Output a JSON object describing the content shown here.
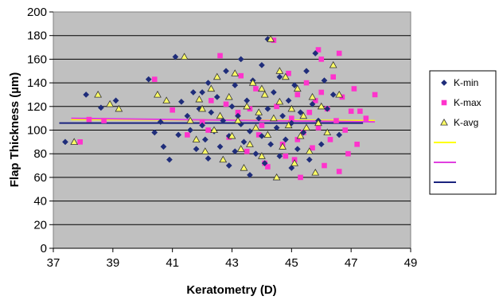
{
  "chart_data": {
    "type": "scatter",
    "title": "",
    "xlabel": "Keratometry (D)",
    "ylabel": "Flap Thickness (µm)",
    "xlim": [
      37,
      49
    ],
    "ylim": [
      0,
      200
    ],
    "x_ticks": [
      "37",
      "39",
      "41",
      "43",
      "45",
      "47",
      "49"
    ],
    "y_ticks": [
      "0",
      "20",
      "40",
      "60",
      "80",
      "100",
      "120",
      "140",
      "160",
      "180",
      "200"
    ],
    "grid": "horizontal",
    "legend_position": "right",
    "colors": {
      "plot_background": "#c0c0c0",
      "gridline": "#000000",
      "k_min": "#1f2d7a",
      "k_max": "#ff33cc",
      "k_avg_fill": "#ffff66",
      "k_avg_edge": "#333333",
      "trend_yellow": "#ffff00",
      "trend_magenta": "#e040e0",
      "trend_navy": "#1a237e"
    },
    "series": [
      {
        "name": "K-min",
        "marker": "diamond",
        "values": [
          [
            37.4,
            90
          ],
          [
            38.1,
            130
          ],
          [
            38.6,
            119
          ],
          [
            39.1,
            125
          ],
          [
            40.2,
            143
          ],
          [
            40.4,
            98
          ],
          [
            40.6,
            107
          ],
          [
            40.7,
            86
          ],
          [
            40.9,
            75
          ],
          [
            41.1,
            162
          ],
          [
            41.3,
            124
          ],
          [
            41.5,
            112
          ],
          [
            41.6,
            100
          ],
          [
            41.7,
            132
          ],
          [
            41.8,
            84
          ],
          [
            41.9,
            118
          ],
          [
            42.0,
            104
          ],
          [
            42.1,
            92
          ],
          [
            42.2,
            140
          ],
          [
            42.2,
            76
          ],
          [
            42.3,
            115
          ],
          [
            42.4,
            99
          ],
          [
            42.5,
            128
          ],
          [
            42.6,
            86
          ],
          [
            42.7,
            108
          ],
          [
            42.8,
            150
          ],
          [
            42.9,
            95
          ],
          [
            42.9,
            70
          ],
          [
            43.0,
            120
          ],
          [
            43.1,
            82
          ],
          [
            43.2,
            112
          ],
          [
            43.3,
            105
          ],
          [
            43.3,
            160
          ],
          [
            43.4,
            90
          ],
          [
            43.5,
            125
          ],
          [
            43.6,
            62
          ],
          [
            43.6,
            99
          ],
          [
            43.7,
            142
          ],
          [
            43.8,
            80
          ],
          [
            43.9,
            110
          ],
          [
            44.0,
            155
          ],
          [
            44.0,
            95
          ],
          [
            44.1,
            72
          ],
          [
            44.2,
            177
          ],
          [
            44.2,
            118
          ],
          [
            44.3,
            88
          ],
          [
            44.4,
            132
          ],
          [
            44.5,
            102
          ],
          [
            44.6,
            78
          ],
          [
            44.6,
            145
          ],
          [
            44.7,
            112
          ],
          [
            44.8,
            92
          ],
          [
            44.9,
            125
          ],
          [
            45.0,
            68
          ],
          [
            45.0,
            106
          ],
          [
            45.1,
            138
          ],
          [
            45.2,
            84
          ],
          [
            45.3,
            115
          ],
          [
            45.4,
            98
          ],
          [
            45.5,
            150
          ],
          [
            45.6,
            75
          ],
          [
            45.7,
            122
          ],
          [
            45.8,
            165
          ],
          [
            45.9,
            108
          ],
          [
            46.0,
            88
          ],
          [
            46.1,
            142
          ],
          [
            46.2,
            118
          ],
          [
            46.4,
            130
          ],
          [
            46.6,
            96
          ],
          [
            41.2,
            96
          ],
          [
            42.0,
            132
          ],
          [
            43.1,
            138
          ]
        ]
      },
      {
        "name": "K-max",
        "marker": "square",
        "values": [
          [
            37.9,
            90
          ],
          [
            38.2,
            109
          ],
          [
            38.7,
            108
          ],
          [
            40.4,
            143
          ],
          [
            41.0,
            117
          ],
          [
            41.5,
            96
          ],
          [
            42.0,
            107
          ],
          [
            42.3,
            125
          ],
          [
            42.6,
            163
          ],
          [
            42.9,
            94
          ],
          [
            43.2,
            115
          ],
          [
            43.5,
            82
          ],
          [
            43.8,
            135
          ],
          [
            44.0,
            104
          ],
          [
            44.2,
            69
          ],
          [
            44.4,
            176
          ],
          [
            44.5,
            120
          ],
          [
            44.7,
            88
          ],
          [
            44.9,
            148
          ],
          [
            45.0,
            110
          ],
          [
            45.1,
            75
          ],
          [
            45.2,
            130
          ],
          [
            45.3,
            60
          ],
          [
            45.4,
            98
          ],
          [
            45.5,
            140
          ],
          [
            45.6,
            115
          ],
          [
            45.7,
            85
          ],
          [
            45.8,
            125
          ],
          [
            45.9,
            102
          ],
          [
            46.0,
            160
          ],
          [
            46.1,
            70
          ],
          [
            46.2,
            118
          ],
          [
            46.3,
            92
          ],
          [
            46.4,
            145
          ],
          [
            46.5,
            108
          ],
          [
            46.6,
            65
          ],
          [
            46.7,
            128
          ],
          [
            46.8,
            100
          ],
          [
            46.9,
            80
          ],
          [
            47.0,
            116
          ],
          [
            47.1,
            135
          ],
          [
            47.2,
            88
          ],
          [
            47.3,
            116
          ],
          [
            47.5,
            110
          ],
          [
            47.8,
            130
          ],
          [
            46.6,
            165
          ],
          [
            45.9,
            168
          ],
          [
            44.8,
            78
          ],
          [
            43.9,
            96
          ],
          [
            43.3,
            146
          ],
          [
            42.8,
            122
          ],
          [
            44.1,
            72
          ],
          [
            45.2,
            92
          ],
          [
            46.0,
            132
          ],
          [
            42.2,
            100
          ],
          [
            43.6,
            118
          ]
        ]
      },
      {
        "name": "K-avg",
        "marker": "triangle",
        "values": [
          [
            37.7,
            90
          ],
          [
            38.5,
            130
          ],
          [
            38.9,
            122
          ],
          [
            39.2,
            118
          ],
          [
            40.5,
            130
          ],
          [
            40.8,
            125
          ],
          [
            41.4,
            162
          ],
          [
            41.6,
            108
          ],
          [
            41.8,
            92
          ],
          [
            42.0,
            118
          ],
          [
            42.1,
            82
          ],
          [
            42.3,
            135
          ],
          [
            42.4,
            100
          ],
          [
            42.6,
            112
          ],
          [
            42.7,
            75
          ],
          [
            42.9,
            128
          ],
          [
            43.0,
            95
          ],
          [
            43.1,
            148
          ],
          [
            43.2,
            108
          ],
          [
            43.4,
            68
          ],
          [
            43.5,
            120
          ],
          [
            43.6,
            88
          ],
          [
            43.7,
            140
          ],
          [
            43.8,
            102
          ],
          [
            43.9,
            115
          ],
          [
            44.0,
            78
          ],
          [
            44.1,
            130
          ],
          [
            44.2,
            96
          ],
          [
            44.3,
            177
          ],
          [
            44.4,
            110
          ],
          [
            44.5,
            60
          ],
          [
            44.6,
            124
          ],
          [
            44.7,
            86
          ],
          [
            44.8,
            145
          ],
          [
            44.9,
            104
          ],
          [
            45.0,
            118
          ],
          [
            45.1,
            72
          ],
          [
            45.2,
            135
          ],
          [
            45.3,
            95
          ],
          [
            45.4,
            112
          ],
          [
            45.6,
            82
          ],
          [
            45.7,
            128
          ],
          [
            45.8,
            64
          ],
          [
            45.9,
            106
          ],
          [
            46.0,
            120
          ],
          [
            46.2,
            98
          ],
          [
            46.4,
            155
          ],
          [
            46.6,
            130
          ],
          [
            42.5,
            145
          ],
          [
            43.3,
            84
          ],
          [
            44.6,
            150
          ],
          [
            45.5,
            102
          ],
          [
            41.9,
            126
          ],
          [
            44.0,
            135
          ]
        ]
      },
      {
        "name": "",
        "type": "trendline",
        "x": [
          37.6,
          47.8
        ],
        "y": [
          109,
          108
        ]
      },
      {
        "name": "",
        "type": "trendline",
        "x": [
          37.6,
          47.8
        ],
        "y": [
          110,
          107
        ]
      },
      {
        "name": "",
        "type": "trendline",
        "x": [
          37.2,
          47.4
        ],
        "y": [
          106,
          106
        ]
      }
    ]
  }
}
